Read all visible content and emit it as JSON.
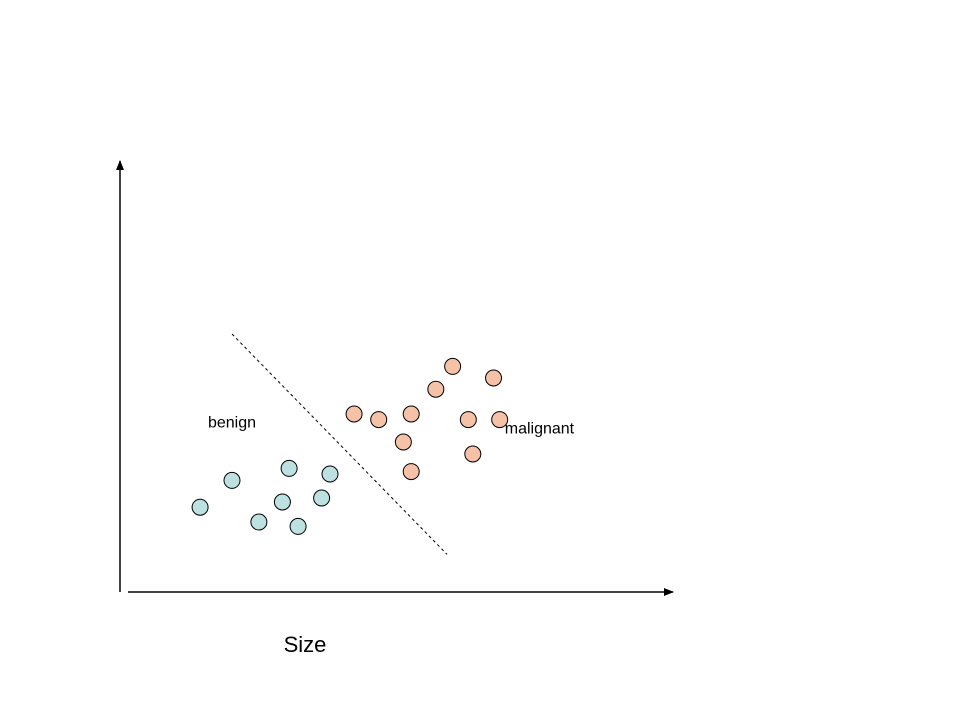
{
  "chart_data": {
    "type": "scatter",
    "title": "",
    "xlabel": "Size",
    "ylabel": "",
    "grid": false,
    "xlim": [
      0,
      10
    ],
    "ylim": [
      0,
      10
    ],
    "series": [
      {
        "name": "benign",
        "color": "#bde0e0",
        "points": [
          [
            1.43,
            2.07
          ],
          [
            2.0,
            2.74
          ],
          [
            2.48,
            1.7
          ],
          [
            2.9,
            2.2
          ],
          [
            3.02,
            3.04
          ],
          [
            3.18,
            1.59
          ],
          [
            3.6,
            2.3
          ],
          [
            3.75,
            2.9
          ]
        ]
      },
      {
        "name": "malignant",
        "color": "#f5c2a8",
        "points": [
          [
            4.18,
            4.4
          ],
          [
            4.62,
            4.26
          ],
          [
            5.06,
            3.7
          ],
          [
            5.2,
            4.4
          ],
          [
            5.2,
            2.96
          ],
          [
            5.64,
            5.02
          ],
          [
            5.94,
            5.59
          ],
          [
            6.22,
            4.26
          ],
          [
            6.3,
            3.4
          ],
          [
            6.67,
            5.3
          ],
          [
            6.78,
            4.26
          ]
        ]
      }
    ],
    "decision_boundary": {
      "style": "dashed",
      "from": [
        2.0,
        6.4
      ],
      "to": [
        5.84,
        0.89
      ]
    },
    "annotations": [
      {
        "text": "benign",
        "at": [
          2.0,
          4.06
        ]
      },
      {
        "text": "malignant",
        "at": [
          7.49,
          3.91
        ]
      }
    ]
  }
}
